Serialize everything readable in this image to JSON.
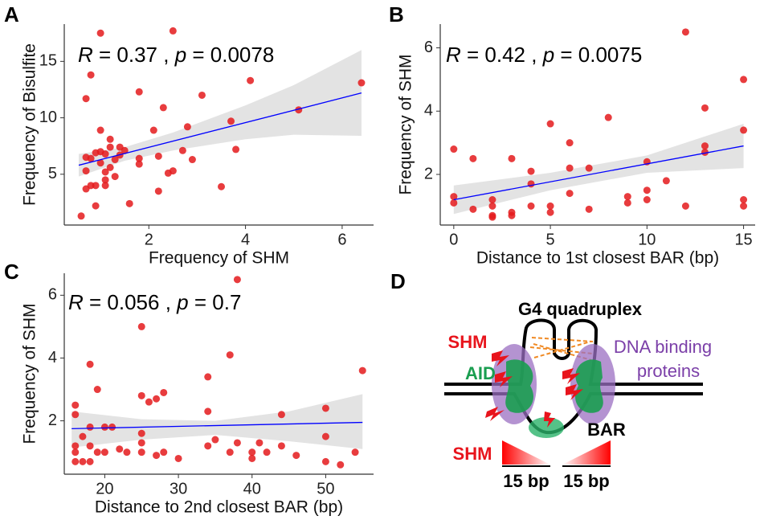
{
  "chart_data": [
    {
      "type": "scatter",
      "panel": "A",
      "annotation": [
        "R",
        " = 0.37 , ",
        "p",
        " = 0.0078"
      ],
      "x_label": "Frequency of SHM",
      "y_label": "Frequency of Bisulfite",
      "color": "#e41a1c",
      "x": [
        0.6,
        0.7,
        0.8,
        1.0,
        0.7,
        0.7,
        0.8,
        0.9,
        0.7,
        0.8,
        0.9,
        0.9,
        1.0,
        1.0,
        1.0,
        1.1,
        1.1,
        1.1,
        1.1,
        1.2,
        1.2,
        1.2,
        1.3,
        1.3,
        1.4,
        1.4,
        1.5,
        1.6,
        1.8,
        1.8,
        1.8,
        2.1,
        2.2,
        2.2,
        2.3,
        2.4,
        2.5,
        2.5,
        2.7,
        2.8,
        2.9,
        3.1,
        3.5,
        3.7,
        3.8,
        4.1,
        5.1,
        6.4
      ],
      "y": [
        1.3,
        11.7,
        13.8,
        17.5,
        6.5,
        5.3,
        6.4,
        6.9,
        3.7,
        4.0,
        4.0,
        2.2,
        8.9,
        7.0,
        6.0,
        5.2,
        4.5,
        4.0,
        6.8,
        8.1,
        7.4,
        5.6,
        4.8,
        6.3,
        6.7,
        7.4,
        7.1,
        2.4,
        12.3,
        6.4,
        5.9,
        8.9,
        6.6,
        3.5,
        10.9,
        5.1,
        17.7,
        5.3,
        7.1,
        9.2,
        6.3,
        12.0,
        3.9,
        9.7,
        7.2,
        13.3,
        10.7,
        13.1
      ],
      "fit": {
        "x": [
          0.55,
          6.4
        ],
        "y": [
          5.8,
          12.2
        ],
        "color": "#0000ff"
      },
      "band": {
        "x": [
          0.55,
          1.5,
          2.5,
          4,
          5,
          6.4
        ],
        "lower": [
          4.8,
          6.2,
          7.1,
          8.1,
          8.5,
          8.4
        ],
        "upper": [
          6.8,
          7.4,
          8.7,
          11.1,
          12.9,
          16.0
        ],
        "color": "#d9d9d9"
      },
      "xlim": [
        0.25,
        6.65
      ],
      "ylim": [
        0.5,
        18.3
      ],
      "xticks": [
        2,
        4,
        6
      ],
      "yticks": [
        5,
        10,
        15
      ]
    },
    {
      "type": "scatter",
      "panel": "B",
      "annotation": [
        "R",
        " = 0.42 , ",
        "p",
        " = 0.0075"
      ],
      "x_label": "Distance to 1st closest BAR (bp)",
      "y_label": "Frequency of SHM",
      "color": "#e41a1c",
      "x": [
        0,
        0,
        0,
        1,
        1,
        2,
        2,
        2,
        2,
        3,
        3,
        3,
        4,
        4,
        4,
        5,
        5,
        5,
        6,
        6,
        6,
        7,
        7,
        8,
        9,
        9,
        10,
        10,
        10,
        11,
        12,
        12,
        13,
        13,
        13,
        15,
        15,
        15,
        15
      ],
      "y": [
        2.8,
        1.3,
        1.1,
        2.5,
        0.9,
        1.2,
        1.0,
        0.7,
        0.65,
        2.5,
        0.8,
        0.7,
        2.1,
        1.7,
        1.0,
        3.6,
        1.0,
        0.8,
        3.0,
        2.2,
        1.4,
        2.2,
        0.9,
        3.8,
        1.3,
        1.1,
        2.4,
        1.5,
        1.2,
        1.8,
        6.5,
        1.0,
        4.1,
        2.9,
        2.7,
        5.0,
        3.4,
        1.2,
        1.0
      ],
      "fit": {
        "x": [
          0,
          15
        ],
        "y": [
          1.2,
          2.9
        ],
        "color": "#0000ff"
      },
      "band": {
        "x": [
          0,
          5,
          10,
          15
        ],
        "lower": [
          0.75,
          1.5,
          2.05,
          2.2
        ],
        "upper": [
          1.65,
          2.05,
          2.6,
          3.6
        ],
        "color": "#d9d9d9"
      },
      "xlim": [
        -0.7,
        15.6
      ],
      "ylim": [
        0.4,
        6.75
      ],
      "xticks": [
        0,
        5,
        10,
        15
      ],
      "yticks": [
        2,
        4,
        6
      ]
    },
    {
      "type": "scatter",
      "panel": "C",
      "annotation": [
        "R",
        " = 0.056 , ",
        "p",
        " = 0.7"
      ],
      "x_label": "Distance to 2nd closest BAR (bp)",
      "y_label": "Frequency of SHM",
      "color": "#e41a1c",
      "x": [
        16,
        16,
        16,
        16,
        16,
        17,
        17,
        18,
        18,
        18,
        18,
        19,
        19,
        20,
        20,
        21,
        22,
        23,
        25,
        25,
        25,
        25,
        25,
        26,
        27,
        27,
        28,
        28,
        30,
        34,
        34,
        34,
        35,
        37,
        37,
        38,
        38,
        40,
        40,
        41,
        42,
        44,
        44,
        46,
        50,
        50,
        50,
        52,
        54,
        55
      ],
      "y": [
        2.5,
        2.2,
        1.2,
        1.0,
        0.7,
        1.5,
        0.7,
        3.8,
        1.8,
        1.2,
        0.7,
        3.0,
        1.0,
        1.8,
        1.0,
        1.8,
        1.1,
        1.0,
        5.0,
        2.8,
        1.6,
        1.3,
        1.0,
        2.6,
        2.7,
        0.9,
        2.9,
        1.0,
        0.8,
        3.4,
        2.3,
        1.2,
        1.4,
        4.1,
        1.0,
        6.5,
        1.3,
        0.8,
        1.0,
        1.3,
        1.0,
        2.2,
        1.2,
        0.9,
        2.4,
        1.5,
        0.7,
        0.6,
        1.0,
        3.6
      ],
      "fit": {
        "x": [
          15.5,
          55
        ],
        "y": [
          1.75,
          1.95
        ],
        "color": "#0000ff"
      },
      "band": {
        "x": [
          15.5,
          25,
          35,
          45,
          55
        ],
        "lower": [
          1.15,
          1.4,
          1.55,
          1.35,
          1.1
        ],
        "upper": [
          2.3,
          2.05,
          2.0,
          2.3,
          2.85
        ],
        "color": "#d9d9d9"
      },
      "xlim": [
        14.5,
        56.5
      ],
      "ylim": [
        0.3,
        6.7
      ],
      "xticks": [
        20,
        30,
        40,
        50
      ],
      "yticks": [
        2,
        4,
        6
      ]
    }
  ],
  "diagram": {
    "panel": "D",
    "title": "G4 quadruplex",
    "shm_top": "SHM",
    "aid": "AID",
    "proteins": [
      "DNA binding",
      "proteins"
    ],
    "bar": "BAR",
    "shm_bottom": "SHM",
    "span_left": "15 bp",
    "span_right": "15 bp"
  }
}
